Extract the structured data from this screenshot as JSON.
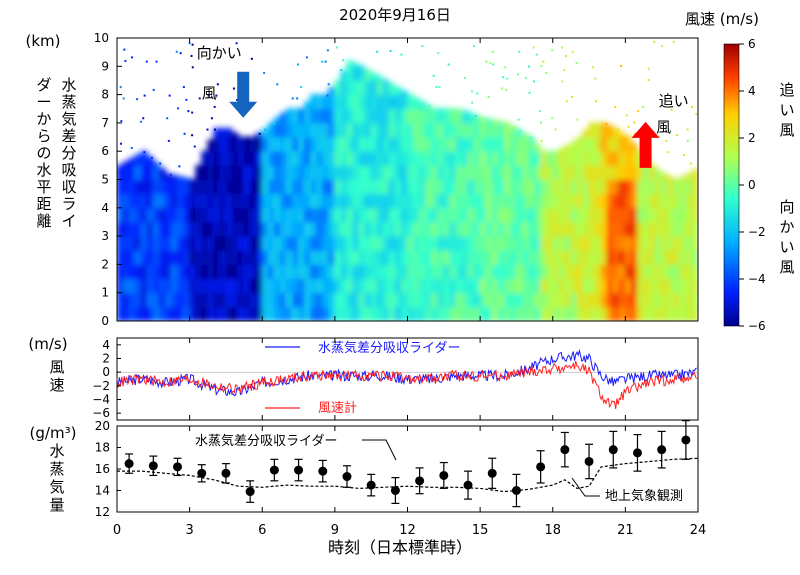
{
  "title": "2020年9月16日",
  "chart_data": [
    {
      "type": "heatmap",
      "y_unit": "(km)",
      "ylabel": "水蒸気差分吸収ライダーからの水平距離",
      "ylim": [
        0,
        10
      ],
      "y_ticks": [
        "0",
        "1",
        "2",
        "3",
        "4",
        "5",
        "6",
        "7",
        "8",
        "9",
        "10"
      ],
      "xlim": [
        0,
        24
      ],
      "colorbar": {
        "title": "風速 (m/s)",
        "range": [
          -6,
          6
        ],
        "ticks": [
          "6",
          "4",
          "2",
          "0",
          "−2",
          "−4",
          "−6"
        ],
        "label_top": "追い風",
        "label_bottom": "向かい風",
        "colors": [
          "#00008f",
          "#0020ff",
          "#00b0ff",
          "#30ffd0",
          "#b0ff50",
          "#ffd000",
          "#ff4000",
          "#9f0000"
        ]
      },
      "annotations": [
        {
          "text": "向かい風",
          "x": 4.8,
          "y": 9.3,
          "arrow": "down",
          "color": "#1565c0"
        },
        {
          "text": "追い風",
          "x": 22.0,
          "y": 7.6,
          "arrow": "up",
          "color": "#ff0000"
        }
      ]
    },
    {
      "type": "line",
      "ylabel": "風速",
      "y_unit": "(m/s)",
      "ylim": [
        -7,
        5
      ],
      "y_ticks": [
        "4",
        "2",
        "0",
        "−2",
        "−4",
        "−6"
      ],
      "xlim": [
        0,
        24
      ],
      "series": [
        {
          "name": "水蒸気差分吸収ライダー",
          "color": "#1a1aff",
          "x": [
            0,
            1,
            2,
            3,
            4,
            5,
            6,
            7,
            8,
            9,
            10,
            11,
            12,
            13,
            14,
            15,
            16,
            17,
            18,
            19,
            19.5,
            20,
            20.5,
            21,
            22,
            23,
            24
          ],
          "y": [
            -1.5,
            -1,
            -1.5,
            -1,
            -2.5,
            -3,
            -1.5,
            -1,
            -0.5,
            -0.5,
            -0.5,
            -0.5,
            -1,
            -1,
            -0.5,
            -0.5,
            -0.5,
            0.5,
            2,
            2.5,
            2,
            -0.5,
            -1.5,
            -1,
            -0.5,
            -0.5,
            0
          ]
        },
        {
          "name": "風速計",
          "color": "#ff2020",
          "x": [
            0,
            1,
            2,
            3,
            4,
            5,
            6,
            7,
            8,
            9,
            10,
            11,
            12,
            13,
            14,
            15,
            16,
            17,
            18,
            19,
            19.5,
            20,
            20.5,
            21,
            22,
            23,
            24
          ],
          "y": [
            -1.5,
            -1,
            -1.5,
            -1,
            -2,
            -2.5,
            -1.5,
            -1,
            -0.5,
            -0.5,
            -0.5,
            -0.5,
            -1,
            -1,
            -0.5,
            -0.5,
            -0.5,
            0,
            0.5,
            1,
            0,
            -3.5,
            -5,
            -3,
            -1.5,
            -1,
            -0.5
          ]
        }
      ]
    },
    {
      "type": "scatter",
      "ylabel": "水蒸気量",
      "y_unit": "(g/m³)",
      "ylim": [
        12,
        20
      ],
      "y_ticks": [
        "20",
        "18",
        "16",
        "14",
        "12"
      ],
      "xlim": [
        0,
        24
      ],
      "xlabel": "時刻（日本標準時）",
      "x_ticks": [
        "0",
        "3",
        "6",
        "9",
        "12",
        "15",
        "18",
        "21",
        "24"
      ],
      "series": [
        {
          "name": "水蒸気差分吸収ライダー",
          "marker": "circle",
          "error_bars": true,
          "x": [
            0.5,
            1.5,
            2.5,
            3.5,
            4.5,
            5.5,
            6.5,
            7.5,
            8.5,
            9.5,
            10.5,
            11.5,
            12.5,
            13.5,
            14.5,
            15.5,
            16.5,
            17.5,
            18.5,
            19.5,
            20.5,
            21.5,
            22.5,
            23.5
          ],
          "y": [
            16.5,
            16.3,
            16.2,
            15.6,
            15.6,
            13.9,
            15.9,
            15.9,
            15.8,
            15.3,
            14.5,
            14.0,
            14.9,
            15.4,
            14.5,
            15.6,
            14.0,
            16.2,
            17.8,
            16.7,
            17.8,
            17.5,
            17.8,
            18.7
          ],
          "err": [
            0.9,
            0.9,
            0.8,
            0.8,
            0.9,
            1.0,
            1.0,
            1.0,
            1.0,
            1.0,
            1.0,
            1.2,
            1.2,
            1.2,
            1.3,
            1.4,
            1.5,
            1.5,
            1.6,
            1.6,
            1.7,
            1.7,
            1.7,
            1.8
          ]
        },
        {
          "name": "地上気象観測",
          "style": "dashed",
          "x": [
            0,
            1,
            2,
            3,
            4,
            5,
            6,
            7,
            8,
            9,
            10,
            11,
            12,
            13,
            14,
            15,
            16,
            17,
            18,
            18.5,
            19,
            19.5,
            20,
            21,
            22,
            23,
            24
          ],
          "y": [
            15.8,
            15.8,
            15.6,
            15.4,
            15.0,
            14.4,
            14.3,
            14.5,
            14.4,
            14.4,
            14.2,
            14.3,
            14.4,
            14.3,
            14.3,
            14.2,
            13.9,
            14.1,
            14.5,
            15.0,
            14.2,
            14.4,
            16.2,
            16.5,
            16.7,
            16.9,
            17.0
          ]
        }
      ]
    }
  ]
}
